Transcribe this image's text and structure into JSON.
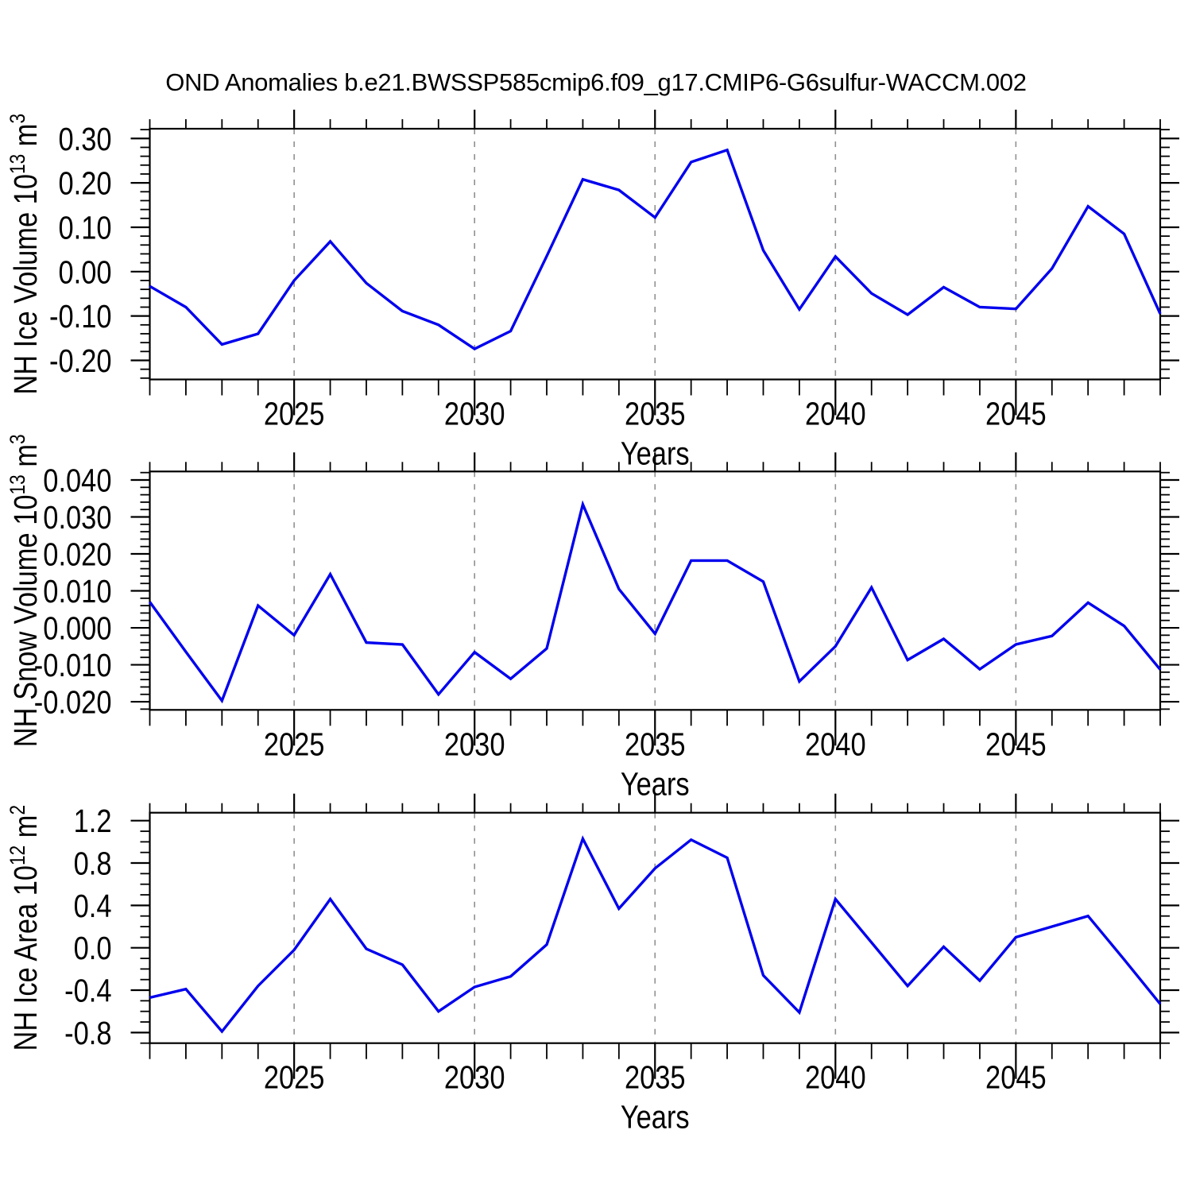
{
  "title": "OND Anomalies b.e21.BWSSP585cmip6.f09_g17.CMIP6-G6sulfur-WACCM.002",
  "colors": {
    "line": "#0000EE",
    "grid": "#909090",
    "axis": "#000000",
    "text": "#000000",
    "background": "#FFFFFF"
  },
  "chart_data": [
    {
      "type": "line",
      "name": "nh-ice-volume",
      "ylabel": "NH Ice Volume 10^13 m^3",
      "ylabel_parts": [
        [
          "NH Ice Volume 10",
          false
        ],
        [
          "13",
          true
        ],
        [
          " m",
          false
        ],
        [
          "3",
          true
        ]
      ],
      "xlabel": "Years",
      "xlim": [
        2021,
        2049
      ],
      "ylim": [
        -0.243,
        0.322
      ],
      "ytick_values": [
        0.3,
        0.2,
        0.1,
        0.0,
        -0.1,
        -0.2
      ],
      "ytick_labels": [
        "0.30",
        "0.20",
        "0.10",
        "0.00",
        "-0.10",
        "-0.20"
      ],
      "ytick_minor_step": 0.02,
      "xticks_major": [
        2025,
        2030,
        2035,
        2040,
        2045
      ],
      "xtick_labels": [
        "2025",
        "2030",
        "2035",
        "2040",
        "2045"
      ],
      "grid": true,
      "x": [
        2021,
        2022,
        2023,
        2024,
        2025,
        2026,
        2027,
        2028,
        2029,
        2030,
        2031,
        2032,
        2033,
        2034,
        2035,
        2036,
        2037,
        2038,
        2039,
        2040,
        2041,
        2042,
        2043,
        2044,
        2045,
        2046,
        2047,
        2048,
        2049
      ],
      "values": [
        -0.033,
        -0.08,
        -0.164,
        -0.14,
        -0.02,
        0.068,
        -0.026,
        -0.089,
        -0.12,
        -0.174,
        -0.134,
        0.035,
        0.208,
        0.184,
        0.122,
        0.247,
        0.274,
        0.048,
        -0.085,
        0.034,
        -0.049,
        -0.097,
        -0.035,
        -0.08,
        -0.084,
        0.007,
        0.147,
        0.085,
        -0.095
      ]
    },
    {
      "type": "line",
      "name": "nh-snow-volume",
      "ylabel": "NH Snow Volume 10^13 m^3",
      "ylabel_parts": [
        [
          "NH Snow Volume 10",
          false
        ],
        [
          "13",
          true
        ],
        [
          " m",
          false
        ],
        [
          "3",
          true
        ]
      ],
      "xlabel": "Years",
      "xlim": [
        2021,
        2049
      ],
      "ylim": [
        -0.0222,
        0.0423
      ],
      "ytick_values": [
        0.04,
        0.03,
        0.02,
        0.01,
        0.0,
        -0.01,
        -0.02
      ],
      "ytick_labels": [
        "0.040",
        "0.030",
        "0.020",
        "0.010",
        "0.000",
        "-0.010",
        "-0.020"
      ],
      "ytick_minor_step": 0.002,
      "xticks_major": [
        2025,
        2030,
        2035,
        2040,
        2045
      ],
      "xtick_labels": [
        "2025",
        "2030",
        "2035",
        "2040",
        "2045"
      ],
      "grid": true,
      "x": [
        2021,
        2022,
        2023,
        2024,
        2025,
        2026,
        2027,
        2028,
        2029,
        2030,
        2031,
        2032,
        2033,
        2034,
        2035,
        2036,
        2037,
        2038,
        2039,
        2040,
        2041,
        2042,
        2043,
        2044,
        2045,
        2046,
        2047,
        2048,
        2049
      ],
      "values": [
        0.007,
        -0.0065,
        -0.0197,
        0.006,
        -0.002,
        0.0145,
        -0.004,
        -0.0045,
        -0.018,
        -0.0066,
        -0.0138,
        -0.0056,
        0.0334,
        0.0105,
        -0.0016,
        0.0182,
        0.0182,
        0.0125,
        -0.0145,
        -0.005,
        0.0109,
        -0.0087,
        -0.003,
        -0.0112,
        -0.0045,
        -0.0022,
        0.0068,
        0.0005,
        -0.0113
      ]
    },
    {
      "type": "line",
      "name": "nh-ice-area",
      "ylabel": "NH Ice Area 10^12 m^2",
      "ylabel_parts": [
        [
          "NH Ice Area 10",
          false
        ],
        [
          "12",
          true
        ],
        [
          " m",
          false
        ],
        [
          "2",
          true
        ]
      ],
      "xlabel": "Years",
      "xlim": [
        2021,
        2049
      ],
      "ylim": [
        -0.9,
        1.275
      ],
      "ytick_values": [
        1.2,
        0.8,
        0.4,
        0.0,
        -0.4,
        -0.8
      ],
      "ytick_labels": [
        "1.2",
        "0.8",
        "0.4",
        "0.0",
        "-0.4",
        "-0.8"
      ],
      "ytick_minor_step": 0.1,
      "xticks_major": [
        2025,
        2030,
        2035,
        2040,
        2045
      ],
      "xtick_labels": [
        "2025",
        "2030",
        "2035",
        "2040",
        "2045"
      ],
      "grid": true,
      "x": [
        2021,
        2022,
        2023,
        2024,
        2025,
        2026,
        2027,
        2028,
        2029,
        2030,
        2031,
        2032,
        2033,
        2034,
        2035,
        2036,
        2037,
        2038,
        2039,
        2040,
        2041,
        2042,
        2043,
        2044,
        2045,
        2046,
        2047,
        2048,
        2049
      ],
      "values": [
        -0.47,
        -0.39,
        -0.79,
        -0.36,
        -0.02,
        0.46,
        -0.01,
        -0.16,
        -0.6,
        -0.37,
        -0.27,
        0.03,
        1.03,
        0.37,
        0.75,
        1.02,
        0.85,
        -0.26,
        -0.61,
        0.46,
        0.05,
        -0.36,
        0.01,
        -0.31,
        0.1,
        0.2,
        0.3,
        -0.11,
        -0.53
      ]
    }
  ]
}
